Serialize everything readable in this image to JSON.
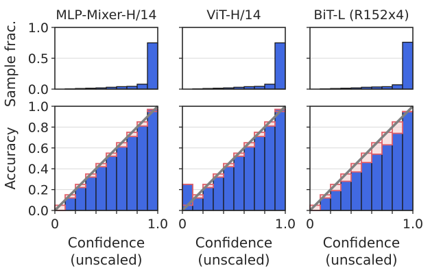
{
  "chart_data": {
    "type": "bar",
    "panel_titles": [
      "MLP-Mixer-H/14",
      "ViT-H/14",
      "BiT-L (R152x4)"
    ],
    "top_ylabel": "Sample frac.",
    "bottom_ylabel": "Accuracy",
    "xlabel_line1": "Confidence",
    "xlabel_line2": "(unscaled)",
    "x_ticks": [
      "0",
      "1.0"
    ],
    "top_yticks": [
      "0.0",
      "0.5",
      "1.0"
    ],
    "bottom_yticks": [
      "0.0",
      "0.2",
      "0.4",
      "0.6",
      "0.8",
      "1.0"
    ],
    "bins": [
      0.05,
      0.15,
      0.25,
      0.35,
      0.45,
      0.55,
      0.65,
      0.75,
      0.85,
      0.95
    ],
    "xlim": [
      0,
      1
    ],
    "top_ylim": [
      0,
      1
    ],
    "bottom_ylim": [
      0,
      1
    ],
    "colors": {
      "bar": "#4169e1",
      "gap_edge": "#e0606a",
      "gap_fill": "#f4d0d0",
      "diagonal": "#808080",
      "grid": "#d9d9d9",
      "axis": "#262626"
    },
    "panels": [
      {
        "name": "MLP-Mixer-H/14",
        "sample_frac": [
          0.0,
          0.005,
          0.01,
          0.015,
          0.02,
          0.03,
          0.04,
          0.045,
          0.08,
          0.75
        ],
        "accuracy": [
          0.0,
          0.12,
          0.22,
          0.32,
          0.42,
          0.52,
          0.61,
          0.71,
          0.81,
          0.97
        ]
      },
      {
        "name": "ViT-H/14",
        "sample_frac": [
          0.0,
          0.005,
          0.01,
          0.015,
          0.02,
          0.03,
          0.04,
          0.045,
          0.08,
          0.75
        ],
        "accuracy": [
          0.25,
          0.12,
          0.22,
          0.32,
          0.42,
          0.52,
          0.61,
          0.71,
          0.81,
          0.97
        ]
      },
      {
        "name": "BiT-L (R152x4)",
        "sample_frac": [
          0.0,
          0.005,
          0.01,
          0.015,
          0.02,
          0.03,
          0.035,
          0.04,
          0.07,
          0.76
        ],
        "accuracy": [
          0.0,
          0.12,
          0.19,
          0.28,
          0.37,
          0.46,
          0.54,
          0.63,
          0.74,
          0.95
        ]
      }
    ]
  }
}
